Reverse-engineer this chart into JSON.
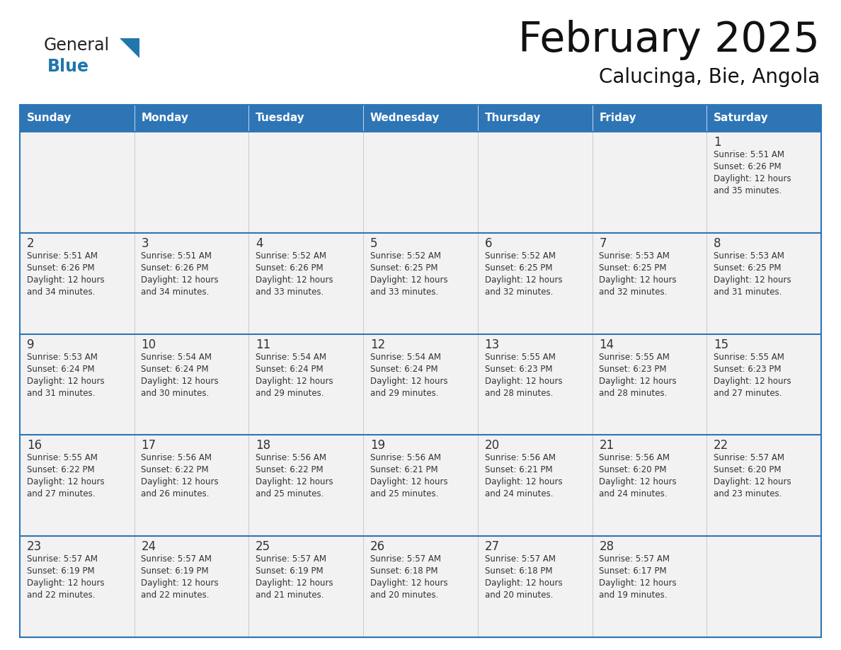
{
  "title": "February 2025",
  "subtitle": "Calucinga, Bie, Angola",
  "header_bg": "#2E75B6",
  "header_text": "#FFFFFF",
  "cell_bg": "#F2F2F2",
  "cell_border": "#BBBBBB",
  "row_border": "#2E75B6",
  "day_number_color": "#333333",
  "info_text_color": "#333333",
  "weekdays": [
    "Sunday",
    "Monday",
    "Tuesday",
    "Wednesday",
    "Thursday",
    "Friday",
    "Saturday"
  ],
  "days": [
    {
      "day": 1,
      "col": 6,
      "row": 0,
      "sunrise": "5:51 AM",
      "sunset": "6:26 PM",
      "dl1": "12 hours",
      "dl2": "and 35 minutes."
    },
    {
      "day": 2,
      "col": 0,
      "row": 1,
      "sunrise": "5:51 AM",
      "sunset": "6:26 PM",
      "dl1": "12 hours",
      "dl2": "and 34 minutes."
    },
    {
      "day": 3,
      "col": 1,
      "row": 1,
      "sunrise": "5:51 AM",
      "sunset": "6:26 PM",
      "dl1": "12 hours",
      "dl2": "and 34 minutes."
    },
    {
      "day": 4,
      "col": 2,
      "row": 1,
      "sunrise": "5:52 AM",
      "sunset": "6:26 PM",
      "dl1": "12 hours",
      "dl2": "and 33 minutes."
    },
    {
      "day": 5,
      "col": 3,
      "row": 1,
      "sunrise": "5:52 AM",
      "sunset": "6:25 PM",
      "dl1": "12 hours",
      "dl2": "and 33 minutes."
    },
    {
      "day": 6,
      "col": 4,
      "row": 1,
      "sunrise": "5:52 AM",
      "sunset": "6:25 PM",
      "dl1": "12 hours",
      "dl2": "and 32 minutes."
    },
    {
      "day": 7,
      "col": 5,
      "row": 1,
      "sunrise": "5:53 AM",
      "sunset": "6:25 PM",
      "dl1": "12 hours",
      "dl2": "and 32 minutes."
    },
    {
      "day": 8,
      "col": 6,
      "row": 1,
      "sunrise": "5:53 AM",
      "sunset": "6:25 PM",
      "dl1": "12 hours",
      "dl2": "and 31 minutes."
    },
    {
      "day": 9,
      "col": 0,
      "row": 2,
      "sunrise": "5:53 AM",
      "sunset": "6:24 PM",
      "dl1": "12 hours",
      "dl2": "and 31 minutes."
    },
    {
      "day": 10,
      "col": 1,
      "row": 2,
      "sunrise": "5:54 AM",
      "sunset": "6:24 PM",
      "dl1": "12 hours",
      "dl2": "and 30 minutes."
    },
    {
      "day": 11,
      "col": 2,
      "row": 2,
      "sunrise": "5:54 AM",
      "sunset": "6:24 PM",
      "dl1": "12 hours",
      "dl2": "and 29 minutes."
    },
    {
      "day": 12,
      "col": 3,
      "row": 2,
      "sunrise": "5:54 AM",
      "sunset": "6:24 PM",
      "dl1": "12 hours",
      "dl2": "and 29 minutes."
    },
    {
      "day": 13,
      "col": 4,
      "row": 2,
      "sunrise": "5:55 AM",
      "sunset": "6:23 PM",
      "dl1": "12 hours",
      "dl2": "and 28 minutes."
    },
    {
      "day": 14,
      "col": 5,
      "row": 2,
      "sunrise": "5:55 AM",
      "sunset": "6:23 PM",
      "dl1": "12 hours",
      "dl2": "and 28 minutes."
    },
    {
      "day": 15,
      "col": 6,
      "row": 2,
      "sunrise": "5:55 AM",
      "sunset": "6:23 PM",
      "dl1": "12 hours",
      "dl2": "and 27 minutes."
    },
    {
      "day": 16,
      "col": 0,
      "row": 3,
      "sunrise": "5:55 AM",
      "sunset": "6:22 PM",
      "dl1": "12 hours",
      "dl2": "and 27 minutes."
    },
    {
      "day": 17,
      "col": 1,
      "row": 3,
      "sunrise": "5:56 AM",
      "sunset": "6:22 PM",
      "dl1": "12 hours",
      "dl2": "and 26 minutes."
    },
    {
      "day": 18,
      "col": 2,
      "row": 3,
      "sunrise": "5:56 AM",
      "sunset": "6:22 PM",
      "dl1": "12 hours",
      "dl2": "and 25 minutes."
    },
    {
      "day": 19,
      "col": 3,
      "row": 3,
      "sunrise": "5:56 AM",
      "sunset": "6:21 PM",
      "dl1": "12 hours",
      "dl2": "and 25 minutes."
    },
    {
      "day": 20,
      "col": 4,
      "row": 3,
      "sunrise": "5:56 AM",
      "sunset": "6:21 PM",
      "dl1": "12 hours",
      "dl2": "and 24 minutes."
    },
    {
      "day": 21,
      "col": 5,
      "row": 3,
      "sunrise": "5:56 AM",
      "sunset": "6:20 PM",
      "dl1": "12 hours",
      "dl2": "and 24 minutes."
    },
    {
      "day": 22,
      "col": 6,
      "row": 3,
      "sunrise": "5:57 AM",
      "sunset": "6:20 PM",
      "dl1": "12 hours",
      "dl2": "and 23 minutes."
    },
    {
      "day": 23,
      "col": 0,
      "row": 4,
      "sunrise": "5:57 AM",
      "sunset": "6:19 PM",
      "dl1": "12 hours",
      "dl2": "and 22 minutes."
    },
    {
      "day": 24,
      "col": 1,
      "row": 4,
      "sunrise": "5:57 AM",
      "sunset": "6:19 PM",
      "dl1": "12 hours",
      "dl2": "and 22 minutes."
    },
    {
      "day": 25,
      "col": 2,
      "row": 4,
      "sunrise": "5:57 AM",
      "sunset": "6:19 PM",
      "dl1": "12 hours",
      "dl2": "and 21 minutes."
    },
    {
      "day": 26,
      "col": 3,
      "row": 4,
      "sunrise": "5:57 AM",
      "sunset": "6:18 PM",
      "dl1": "12 hours",
      "dl2": "and 20 minutes."
    },
    {
      "day": 27,
      "col": 4,
      "row": 4,
      "sunrise": "5:57 AM",
      "sunset": "6:18 PM",
      "dl1": "12 hours",
      "dl2": "and 20 minutes."
    },
    {
      "day": 28,
      "col": 5,
      "row": 4,
      "sunrise": "5:57 AM",
      "sunset": "6:17 PM",
      "dl1": "12 hours",
      "dl2": "and 19 minutes."
    }
  ],
  "num_rows": 5,
  "num_cols": 7,
  "logo_general_color": "#222222",
  "logo_blue_color": "#2176AE",
  "figure_bg": "#FFFFFF"
}
